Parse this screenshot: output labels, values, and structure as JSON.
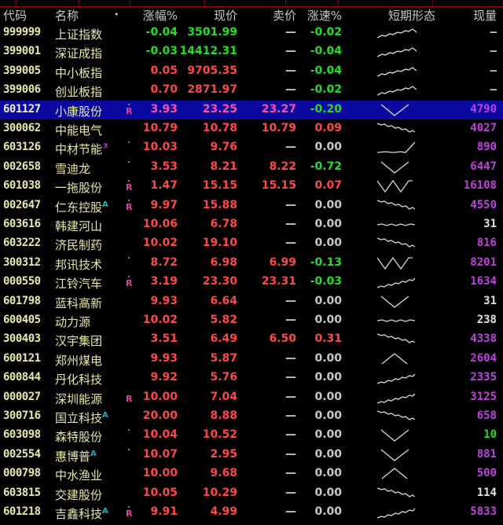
{
  "header": {
    "code": "代码",
    "name": "名称",
    "dot": "•",
    "change_pct": "涨幅%",
    "price": "现价",
    "ask": "卖价",
    "speed": "涨速%",
    "trend": "短期形态",
    "volume": "现量"
  },
  "colors": {
    "up": "#ff4848",
    "down": "#20e020",
    "flat": "#c8c8c8",
    "volume": "#c040e0",
    "selected_row": "#0a0aa0"
  },
  "selected_code": "601127",
  "rows": [
    {
      "code": "999999",
      "name": "上证指数",
      "tag": "",
      "marker": "",
      "dot": false,
      "pct": "-0.04",
      "price": "3501.99",
      "ask": "—",
      "speed": "-0.02",
      "trend": "up-peak",
      "volume": "—",
      "vol_color": "gray"
    },
    {
      "code": "399001",
      "name": "深证成指",
      "tag": "",
      "marker": "",
      "dot": false,
      "pct": "-0.03",
      "price": "14412.31",
      "ask": "—",
      "speed": "-0.04",
      "trend": "up-peak",
      "volume": "—",
      "vol_color": "gray"
    },
    {
      "code": "399005",
      "name": "中小板指",
      "tag": "",
      "marker": "",
      "dot": false,
      "pct": "0.05",
      "price": "9705.35",
      "ask": "—",
      "speed": "-0.04",
      "trend": "up-peak",
      "volume": "—",
      "vol_color": "gray"
    },
    {
      "code": "399006",
      "name": "创业板指",
      "tag": "",
      "marker": "",
      "dot": false,
      "pct": "0.70",
      "price": "2871.97",
      "ask": "—",
      "speed": "-0.02",
      "trend": "up-peak",
      "volume": "—",
      "vol_color": "gray"
    },
    {
      "code": "601127",
      "name": "小康股份",
      "tag": "",
      "marker": "R",
      "dot": true,
      "pct": "3.93",
      "price": "23.25",
      "ask": "23.27",
      "speed": "-0.20",
      "trend": "v",
      "volume": "4790",
      "vol_color": "mag"
    },
    {
      "code": "300062",
      "name": "中能电气",
      "tag": "",
      "marker": "",
      "dot": false,
      "pct": "10.79",
      "price": "10.78",
      "ask": "10.79",
      "speed": "0.09",
      "trend": "down",
      "volume": "4027",
      "vol_color": "mag"
    },
    {
      "code": "603126",
      "name": "中材节能",
      "tag": "③",
      "marker": "",
      "dot": true,
      "pct": "10.03",
      "price": "9.76",
      "ask": "—",
      "speed": "0.00",
      "trend": "hockey",
      "volume": "890",
      "vol_color": "mag"
    },
    {
      "code": "002658",
      "name": "雪迪龙",
      "tag": "",
      "marker": "",
      "dot": true,
      "pct": "3.53",
      "price": "8.21",
      "ask": "8.22",
      "speed": "-0.72",
      "trend": "v",
      "volume": "6447",
      "vol_color": "mag"
    },
    {
      "code": "601038",
      "name": "一拖股份",
      "tag": "",
      "marker": "R",
      "dot": true,
      "pct": "1.47",
      "price": "15.15",
      "ask": "15.15",
      "speed": "0.07",
      "trend": "w",
      "volume": "16108",
      "vol_color": "mag"
    },
    {
      "code": "002647",
      "name": "仁东控股",
      "tag": "A",
      "marker": "R",
      "dot": true,
      "pct": "9.97",
      "price": "15.88",
      "ask": "—",
      "speed": "0.00",
      "trend": "down",
      "volume": "4550",
      "vol_color": "mag"
    },
    {
      "code": "603616",
      "name": "韩建河山",
      "tag": "",
      "marker": "",
      "dot": false,
      "pct": "10.06",
      "price": "6.78",
      "ask": "—",
      "speed": "0.00",
      "trend": "flat",
      "volume": "31",
      "vol_color": "white"
    },
    {
      "code": "603222",
      "name": "济民制药",
      "tag": "",
      "marker": "",
      "dot": false,
      "pct": "10.02",
      "price": "19.10",
      "ask": "—",
      "speed": "0.00",
      "trend": "down",
      "volume": "816",
      "vol_color": "mag"
    },
    {
      "code": "300312",
      "name": "邦讯技术",
      "tag": "",
      "marker": "",
      "dot": true,
      "pct": "8.72",
      "price": "6.98",
      "ask": "6.99",
      "speed": "-0.13",
      "trend": "w",
      "volume": "8201",
      "vol_color": "mag"
    },
    {
      "code": "000550",
      "name": "江铃汽车",
      "tag": "",
      "marker": "R",
      "dot": true,
      "pct": "3.19",
      "price": "23.30",
      "ask": "23.31",
      "speed": "-0.03",
      "trend": "up",
      "volume": "1634",
      "vol_color": "mag"
    },
    {
      "code": "601798",
      "name": "蓝科高新",
      "tag": "",
      "marker": "",
      "dot": false,
      "pct": "9.93",
      "price": "6.64",
      "ask": "—",
      "speed": "0.00",
      "trend": "v",
      "volume": "31",
      "vol_color": "white"
    },
    {
      "code": "600405",
      "name": "动力源",
      "tag": "",
      "marker": "",
      "dot": false,
      "pct": "10.02",
      "price": "5.82",
      "ask": "—",
      "speed": "0.00",
      "trend": "flat",
      "volume": "238",
      "vol_color": "white"
    },
    {
      "code": "300403",
      "name": "汉宇集团",
      "tag": "",
      "marker": "",
      "dot": false,
      "pct": "3.51",
      "price": "6.49",
      "ask": "6.50",
      "speed": "0.31",
      "trend": "down",
      "volume": "4338",
      "vol_color": "mag"
    },
    {
      "code": "600121",
      "name": "郑州煤电",
      "tag": "",
      "marker": "",
      "dot": false,
      "pct": "9.93",
      "price": "5.87",
      "ask": "—",
      "speed": "0.00",
      "trend": "caret",
      "volume": "2604",
      "vol_color": "mag"
    },
    {
      "code": "600844",
      "name": "丹化科技",
      "tag": "",
      "marker": "",
      "dot": false,
      "pct": "9.92",
      "price": "5.76",
      "ask": "—",
      "speed": "0.00",
      "trend": "up",
      "volume": "2335",
      "vol_color": "mag"
    },
    {
      "code": "000027",
      "name": "深圳能源",
      "tag": "",
      "marker": "R",
      "dot": false,
      "pct": "10.00",
      "price": "7.04",
      "ask": "—",
      "speed": "0.00",
      "trend": "up",
      "volume": "3125",
      "vol_color": "mag"
    },
    {
      "code": "300716",
      "name": "国立科技",
      "tag": "A",
      "marker": "",
      "dot": false,
      "pct": "20.00",
      "price": "8.88",
      "ask": "—",
      "speed": "0.00",
      "trend": "down",
      "volume": "658",
      "vol_color": "mag"
    },
    {
      "code": "603098",
      "name": "森特股份",
      "tag": "",
      "marker": "",
      "dot": true,
      "pct": "10.04",
      "price": "10.52",
      "ask": "—",
      "speed": "0.00",
      "trend": "v",
      "volume": "10",
      "vol_color": "green"
    },
    {
      "code": "002554",
      "name": "惠博普",
      "tag": "A",
      "marker": "",
      "dot": true,
      "pct": "10.07",
      "price": "2.95",
      "ask": "—",
      "speed": "0.00",
      "trend": "v",
      "volume": "881",
      "vol_color": "mag"
    },
    {
      "code": "000798",
      "name": "中水渔业",
      "tag": "",
      "marker": "",
      "dot": false,
      "pct": "10.00",
      "price": "9.68",
      "ask": "—",
      "speed": "0.00",
      "trend": "caret",
      "volume": "500",
      "vol_color": "mag"
    },
    {
      "code": "603815",
      "name": "交建股份",
      "tag": "",
      "marker": "",
      "dot": false,
      "pct": "10.05",
      "price": "10.29",
      "ask": "—",
      "speed": "0.00",
      "trend": "down",
      "volume": "114",
      "vol_color": "white"
    },
    {
      "code": "601218",
      "name": "吉鑫科技",
      "tag": "A",
      "marker": "R",
      "dot": true,
      "pct": "9.91",
      "price": "4.99",
      "ask": "—",
      "speed": "0.00",
      "trend": "up",
      "volume": "5833",
      "vol_color": "mag"
    }
  ]
}
